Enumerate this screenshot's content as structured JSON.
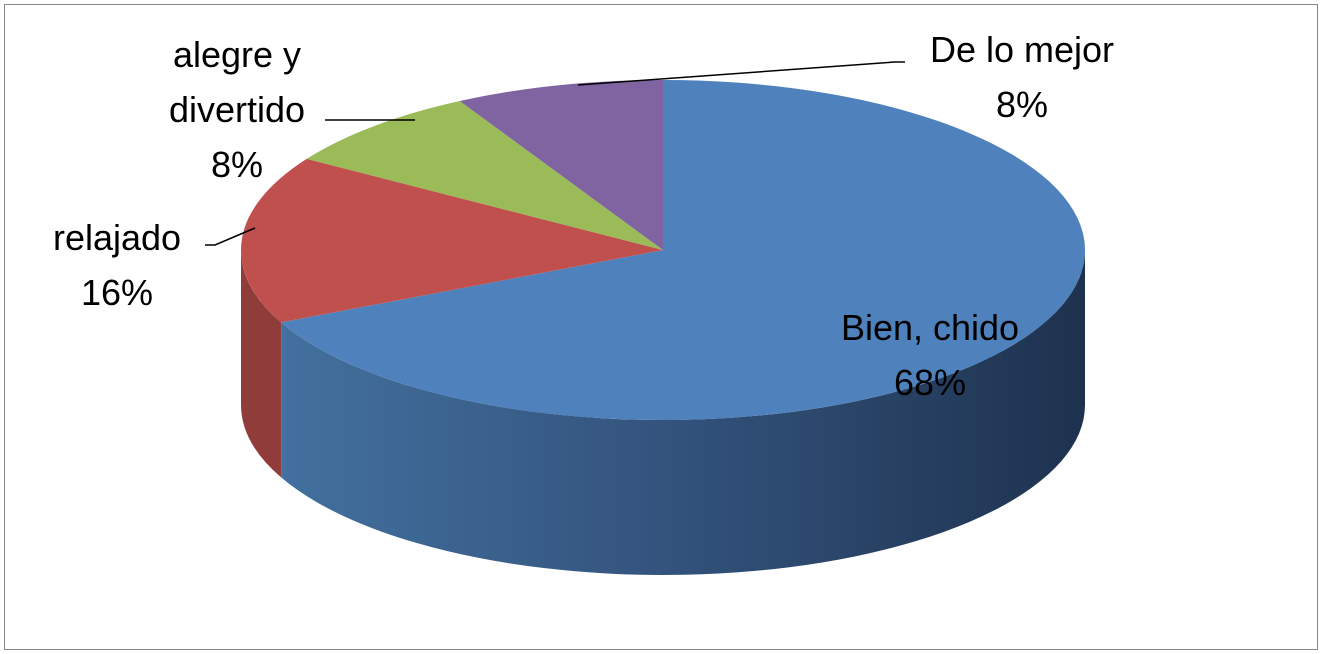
{
  "chart_data": {
    "type": "pie",
    "categories": [
      "Bien, chido",
      "relajado",
      "alegre y divertido",
      "De lo mejor"
    ],
    "values": [
      68,
      16,
      8,
      8
    ],
    "value_labels": [
      "68%",
      "16%",
      "8%",
      "8%"
    ],
    "colors": [
      "#4f81bd",
      "#c0504d",
      "#9bbb59",
      "#8064a2"
    ]
  }
}
